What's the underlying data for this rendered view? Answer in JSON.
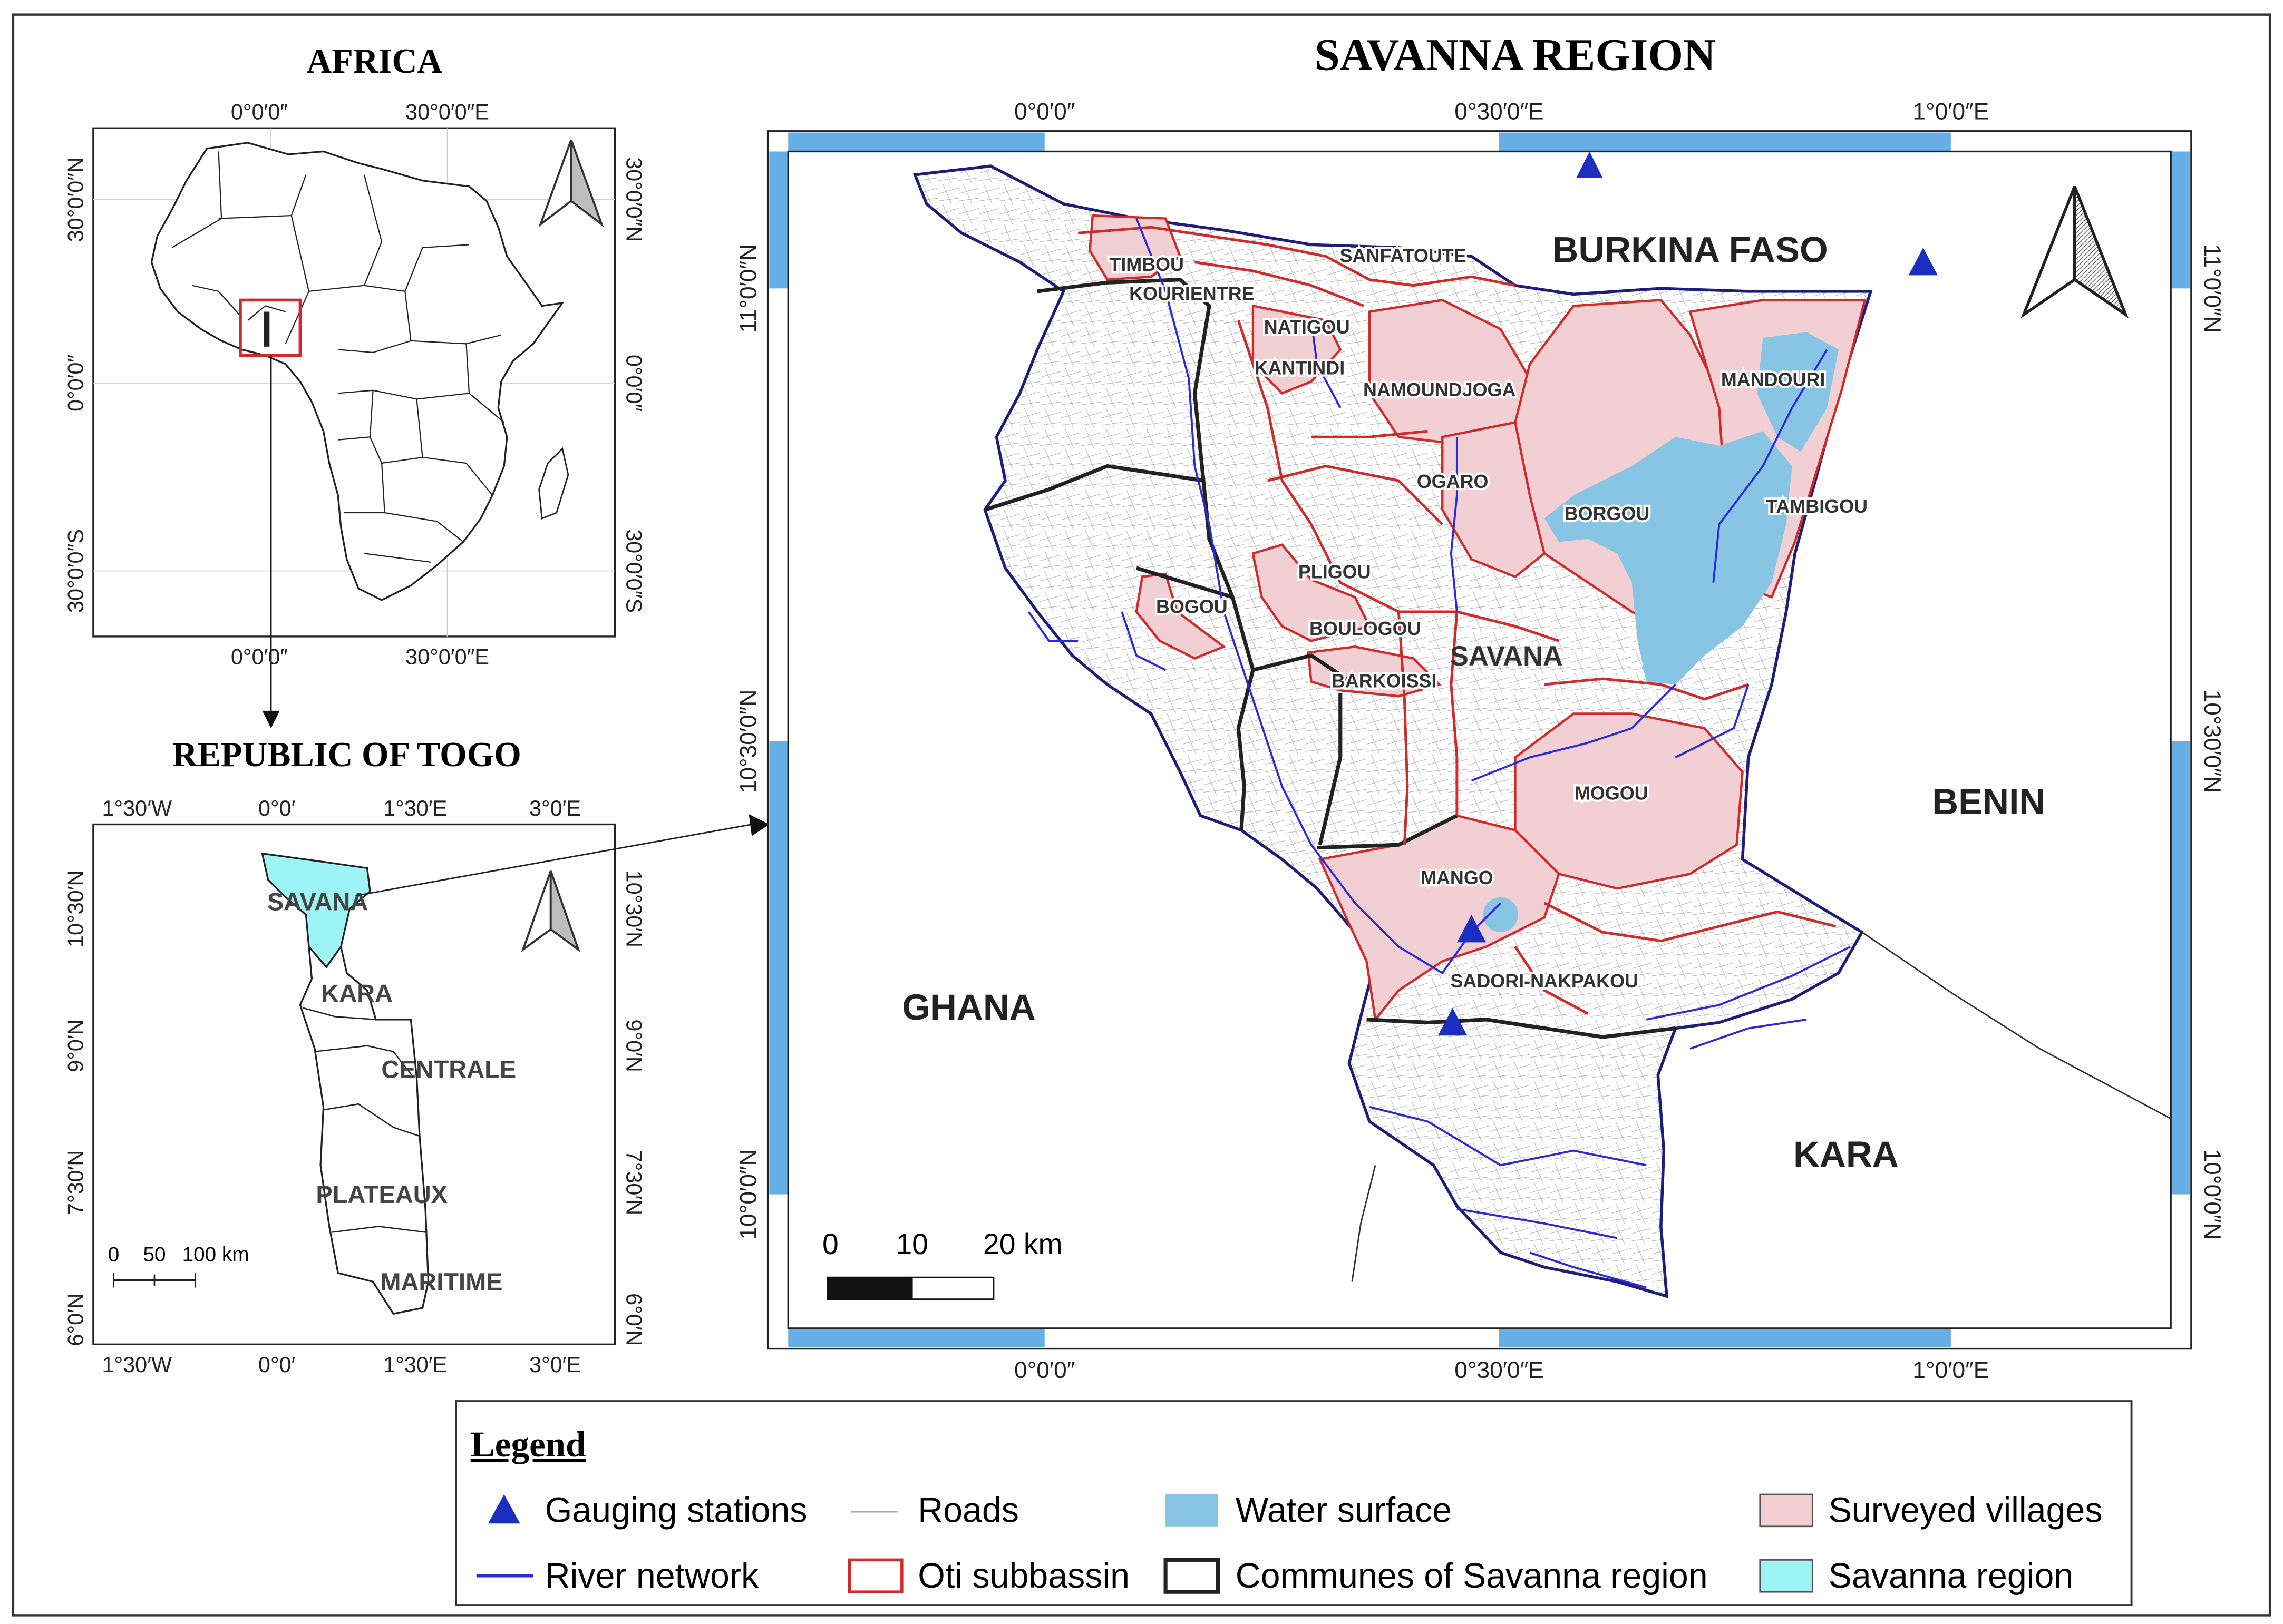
{
  "titles": {
    "africa": "AFRICA",
    "togo": "REPUBLIC OF TOGO",
    "savanna": "SAVANNA REGION"
  },
  "africa_panel": {
    "top_ticks": [
      "0°0′0″",
      "30°0′0″E"
    ],
    "bottom_ticks": [
      "0°0′0″",
      "30°0′0″E"
    ],
    "left_ticks": [
      "30°0′0″N",
      "0°0′0″",
      "30°0′0″S"
    ],
    "right_ticks": [
      "30°0′0″N",
      "0°0′0″",
      "30°0′0″S"
    ]
  },
  "togo_panel": {
    "top_ticks": [
      "1°30′W",
      "0°0′",
      "1°30′E",
      "3°0′E"
    ],
    "bottom_ticks": [
      "1°30′W",
      "0°0′",
      "1°30′E",
      "3°0′E"
    ],
    "left_ticks": [
      "10°30′N",
      "9°0′N",
      "7°30′N",
      "6°0′N"
    ],
    "right_ticks": [
      "10°30′N",
      "9°0′N",
      "7°30′N",
      "6°0′N"
    ],
    "regions": [
      "SAVANA",
      "KARA",
      "CENTRALE",
      "PLATEAUX",
      "MARITIME"
    ],
    "scale_labels": [
      "0",
      "50",
      "100 km"
    ]
  },
  "main_panel": {
    "top_ticks": [
      "0°0′0″",
      "0°30′0″E",
      "1°0′0″E"
    ],
    "bottom_ticks": [
      "0°0′0″",
      "0°30′0″E",
      "1°0′0″E"
    ],
    "left_ticks": [
      "11°0′0″N",
      "10°30′0″N",
      "10°0′0″N"
    ],
    "right_ticks": [
      "11°0′0″N",
      "10°30′0″N",
      "10°0′0″N"
    ],
    "countries": [
      "BURKINA FASO",
      "BENIN",
      "GHANA",
      "KARA"
    ],
    "region_label": "SAVANA",
    "villages": [
      "TIMBOU",
      "SANFATOUTE",
      "KOURIENTRE",
      "NATIGOU",
      "KANTINDI",
      "NAMOUNDJOGA",
      "MANDOURI",
      "OGARO",
      "BORGOU",
      "TAMBIGOU",
      "PLIGOU",
      "BOGOU",
      "BOULOGOU",
      "BARKOISSI",
      "MOGOU",
      "MANGO",
      "SADORI-NAKPAKOU"
    ],
    "scale_labels": [
      "0",
      "10",
      "20 km"
    ]
  },
  "legend": {
    "title": "Legend",
    "items": [
      "Gauging stations",
      "Roads",
      "Water surface",
      "Surveyed villages",
      "River network",
      "Oti subbassin",
      "Communes of Savanna region",
      "Savanna region"
    ]
  },
  "colors": {
    "village_fill": "#f2cfd2",
    "water": "#88c4e4",
    "river": "#2a2ad8",
    "oti_border": "#d12a2a",
    "savanna_fill": "#9cf4f4",
    "frame_blue": "#66aee6",
    "station": "#1a2fc0",
    "road": "#a6a6a6"
  },
  "icons": [
    "north-arrow-icon",
    "gauging-station-icon"
  ]
}
